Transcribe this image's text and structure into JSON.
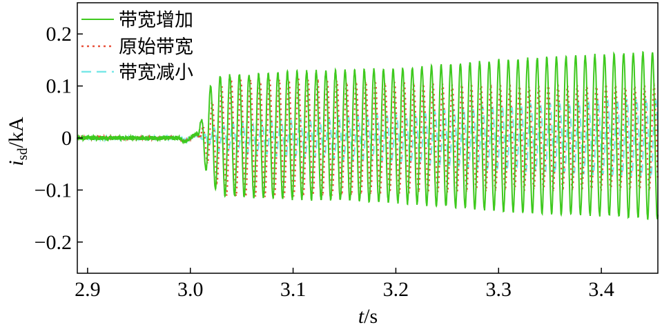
{
  "chart_data": {
    "type": "line",
    "xlabel": {
      "italic": "t",
      "unit": "/s"
    },
    "ylabel": {
      "italic": "i",
      "subscript": "sd",
      "unit": "/kA"
    },
    "xlim": [
      2.89,
      3.455
    ],
    "ylim": [
      -0.26,
      0.26
    ],
    "xticks": [
      2.9,
      3.0,
      3.1,
      3.2,
      3.3,
      3.4
    ],
    "xtick_labels": [
      "2.9",
      "3.0",
      "3.1",
      "3.2",
      "3.3",
      "3.4"
    ],
    "yticks": [
      0.2,
      0.1,
      0,
      -0.1,
      -0.2
    ],
    "ytick_labels": [
      "0.2",
      "0.1",
      "0",
      "−0.1",
      "−0.2"
    ],
    "disturbance_time": 3.0,
    "legend_position": "top-left",
    "series": [
      {
        "name": "带宽增加",
        "color": "#3ec91e",
        "style": "solid",
        "pre_noise": 0.004,
        "oscillation": {
          "start": 3.008,
          "period": 0.00935,
          "offset": 0.005,
          "envelope": [
            [
              3.008,
              0.01
            ],
            [
              3.018,
              0.09
            ],
            [
              3.03,
              0.115
            ],
            [
              3.1,
              0.122
            ],
            [
              3.2,
              0.128
            ],
            [
              3.3,
              0.145
            ],
            [
              3.45,
              0.16
            ]
          ]
        }
      },
      {
        "name": "原始带宽",
        "color": "#e8503a",
        "style": "dotted",
        "pre_noise": 0.003,
        "oscillation": {
          "start": 3.01,
          "period": 0.00935,
          "offset": 0.0,
          "envelope": [
            [
              3.01,
              0.01
            ],
            [
              3.022,
              0.075
            ],
            [
              3.035,
              0.11
            ],
            [
              3.1,
              0.112
            ],
            [
              3.2,
              0.105
            ],
            [
              3.3,
              0.1
            ],
            [
              3.45,
              0.1
            ]
          ]
        }
      },
      {
        "name": "带宽减小",
        "color": "#79e8e8",
        "style": "dashed",
        "pre_noise": 0.003,
        "oscillation": {
          "start": 3.012,
          "period": 0.00935,
          "offset": 0.0,
          "envelope": [
            [
              3.012,
              0.005
            ],
            [
              3.03,
              0.025
            ],
            [
              3.1,
              0.035
            ],
            [
              3.2,
              0.045
            ],
            [
              3.3,
              0.06
            ],
            [
              3.45,
              0.075
            ]
          ]
        }
      }
    ]
  }
}
